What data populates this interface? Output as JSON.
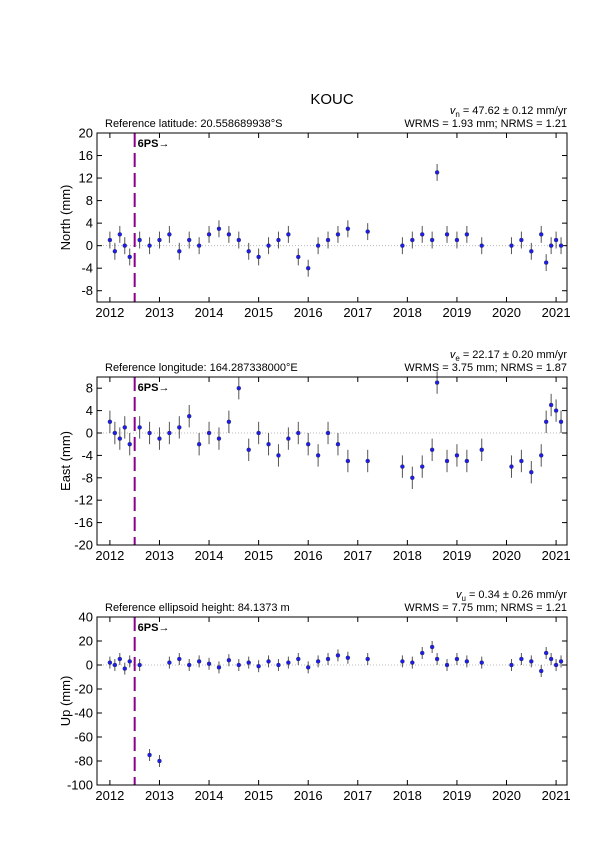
{
  "title": "KOUC",
  "chart_data": [
    {
      "type": "scatter",
      "reference": "Reference latitude: 20.558689938°S",
      "velocity": {
        "symbol": "v",
        "subscript": "n",
        "text": " = 47.62 ± 0.12 mm/yr"
      },
      "stats": "WRMS = 1.93 mm; NRMS = 1.21",
      "ylabel": "North (mm)",
      "x": [
        2012.0,
        2012.1,
        2012.2,
        2012.3,
        2012.4,
        2012.6,
        2012.8,
        2013.0,
        2013.2,
        2013.4,
        2013.6,
        2013.8,
        2014.0,
        2014.2,
        2014.4,
        2014.6,
        2014.8,
        2015.0,
        2015.2,
        2015.4,
        2015.6,
        2015.8,
        2016.0,
        2016.2,
        2016.4,
        2016.6,
        2016.8,
        2017.2,
        2017.9,
        2018.1,
        2018.3,
        2018.5,
        2018.6,
        2018.8,
        2019.0,
        2019.2,
        2019.5,
        2020.1,
        2020.3,
        2020.5,
        2020.7,
        2020.8,
        2020.9,
        2021.0,
        2021.1
      ],
      "series": [
        {
          "color": "#1c1cf0",
          "error_color": "#555555",
          "error": 1.5,
          "values": [
            1,
            -1,
            2,
            0,
            -2,
            1,
            0,
            1,
            2,
            -1,
            1,
            0,
            2,
            3,
            2,
            1,
            -1,
            -2,
            0,
            1,
            2,
            -2,
            -4,
            0,
            1,
            2,
            3,
            2.5,
            0,
            1,
            2,
            1,
            13,
            2,
            1,
            2,
            0,
            0,
            1,
            -1,
            2,
            -3,
            0,
            1,
            0
          ]
        }
      ],
      "xlim": [
        2011.74,
        2021.22
      ],
      "xticks": [
        2012,
        2013,
        2014,
        2015,
        2016,
        2017,
        2018,
        2019,
        2020,
        2021
      ],
      "ylim": [
        -10,
        20
      ],
      "yticks": [
        -8,
        -4,
        0,
        4,
        8,
        12,
        16,
        20
      ],
      "reference_line": 0,
      "event": {
        "x": 2012.5,
        "label": "6PS→",
        "color": "#8b008b"
      }
    },
    {
      "type": "scatter",
      "reference": "Reference longitude: 164.287338000°E",
      "velocity": {
        "symbol": "v",
        "subscript": "e",
        "text": " = 22.17 ± 0.20 mm/yr"
      },
      "stats": "WRMS = 3.75 mm; NRMS = 1.87",
      "ylabel": "East (mm)",
      "x": [
        2012.0,
        2012.1,
        2012.2,
        2012.3,
        2012.4,
        2012.6,
        2012.8,
        2013.0,
        2013.2,
        2013.4,
        2013.6,
        2013.8,
        2014.0,
        2014.2,
        2014.4,
        2014.6,
        2014.8,
        2015.0,
        2015.2,
        2015.4,
        2015.6,
        2015.8,
        2016.0,
        2016.2,
        2016.4,
        2016.6,
        2016.8,
        2017.2,
        2017.9,
        2018.1,
        2018.3,
        2018.5,
        2018.6,
        2018.8,
        2019.0,
        2019.2,
        2019.5,
        2020.1,
        2020.3,
        2020.5,
        2020.7,
        2020.8,
        2020.9,
        2021.0,
        2021.1
      ],
      "series": [
        {
          "color": "#1c1cf0",
          "error_color": "#555555",
          "error": 2,
          "values": [
            2,
            0,
            -1,
            1,
            -2,
            1,
            0,
            -1,
            0,
            1,
            3,
            -2,
            0,
            -1,
            2,
            8,
            -3,
            0,
            -2,
            -4,
            -1,
            0,
            -2,
            -4,
            0,
            -2,
            -5,
            -5,
            -6,
            -8,
            -6,
            -3,
            9,
            -5,
            -4,
            -5,
            -3,
            -6,
            -5,
            -7,
            -4,
            2,
            5,
            4,
            2
          ]
        }
      ],
      "xlim": [
        2011.74,
        2021.22
      ],
      "xticks": [
        2012,
        2013,
        2014,
        2015,
        2016,
        2017,
        2018,
        2019,
        2020,
        2021
      ],
      "ylim": [
        -20,
        10
      ],
      "yticks": [
        -20,
        -16,
        -12,
        -8,
        -4,
        0,
        4,
        8
      ],
      "reference_line": 0,
      "event": {
        "x": 2012.5,
        "label": "6PS→",
        "color": "#8b008b"
      }
    },
    {
      "type": "scatter",
      "reference": "Reference ellipsoid height: 84.1373 m",
      "velocity": {
        "symbol": "v",
        "subscript": "u",
        "text": " = 0.34 ± 0.26 mm/yr"
      },
      "stats": "WRMS = 7.75 mm; NRMS = 1.21",
      "ylabel": "Up (mm)",
      "x": [
        2012.0,
        2012.1,
        2012.2,
        2012.3,
        2012.4,
        2012.6,
        2012.8,
        2013.0,
        2013.2,
        2013.4,
        2013.6,
        2013.8,
        2014.0,
        2014.2,
        2014.4,
        2014.6,
        2014.8,
        2015.0,
        2015.2,
        2015.4,
        2015.6,
        2015.8,
        2016.0,
        2016.2,
        2016.4,
        2016.6,
        2016.8,
        2017.2,
        2017.9,
        2018.1,
        2018.3,
        2018.5,
        2018.6,
        2018.8,
        2019.0,
        2019.2,
        2019.5,
        2020.1,
        2020.3,
        2020.5,
        2020.7,
        2020.8,
        2020.9,
        2021.0,
        2021.1
      ],
      "series": [
        {
          "color": "#1c1cf0",
          "error_color": "#555555",
          "error": 5,
          "values": [
            2,
            0,
            5,
            -3,
            3,
            0,
            -75,
            -80,
            2,
            5,
            0,
            3,
            1,
            -2,
            4,
            0,
            2,
            -1,
            3,
            0,
            2,
            5,
            -2,
            3,
            5,
            8,
            6,
            5,
            3,
            2,
            10,
            15,
            5,
            0,
            5,
            3,
            2,
            0,
            5,
            3,
            -5,
            10,
            5,
            0,
            3
          ]
        }
      ],
      "xlim": [
        2011.74,
        2021.22
      ],
      "xticks": [
        2012,
        2013,
        2014,
        2015,
        2016,
        2017,
        2018,
        2019,
        2020,
        2021
      ],
      "ylim": [
        -100,
        40
      ],
      "yticks": [
        -100,
        -80,
        -60,
        -40,
        -20,
        0,
        20,
        40
      ],
      "reference_line": 0,
      "event": {
        "x": 2012.5,
        "label": "6PS→",
        "color": "#8b008b"
      }
    }
  ]
}
